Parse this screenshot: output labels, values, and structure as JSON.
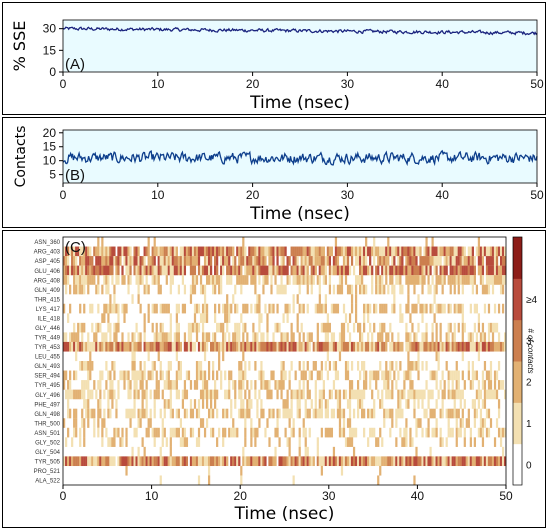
{
  "chart_data": [
    {
      "type": "line",
      "panel_label": "(A)",
      "ylabel": "% SSE",
      "xlabel": "Time (nsec)",
      "xlim": [
        0,
        50
      ],
      "ylim": [
        0,
        36
      ],
      "xticks": [
        0,
        10,
        20,
        30,
        40,
        50
      ],
      "yticks": [
        0,
        15,
        30
      ],
      "series": [
        {
          "color": "#1a237e",
          "mean": 30,
          "noise": 1.8,
          "trend_end": 27
        }
      ]
    },
    {
      "type": "line",
      "panel_label": "(B)",
      "ylabel": "Contacts",
      "xlabel": "Time (nsec)",
      "xlim": [
        0,
        50
      ],
      "ylim": [
        2,
        21
      ],
      "xticks": [
        0,
        10,
        20,
        30,
        40,
        50
      ],
      "yticks": [
        5,
        10,
        15,
        20
      ],
      "series": [
        {
          "color": "#0d3e8c",
          "mean": 11,
          "noise": 3.0
        }
      ]
    },
    {
      "type": "heatmap",
      "panel_label": "(C)",
      "xlabel": "Time (nsec)",
      "xlim": [
        0,
        50
      ],
      "xticks": [
        0,
        10,
        20,
        30,
        40,
        50
      ],
      "colorbar": {
        "label": "# of contacts",
        "ticks": [
          "0",
          "1",
          "2",
          "3",
          "≥4"
        ],
        "colors": [
          "#ffffff",
          "#f3e0b2",
          "#e2b173",
          "#cc7f4f",
          "#b84b3c",
          "#8c1d18"
        ]
      },
      "residues": [
        {
          "name": "ASN_360",
          "occupancy": 0.05
        },
        {
          "name": "ARG_403",
          "occupancy": 0.9
        },
        {
          "name": "ASP_405",
          "occupancy": 0.85
        },
        {
          "name": "GLU_406",
          "occupancy": 0.88
        },
        {
          "name": "ARG_408",
          "occupancy": 0.7
        },
        {
          "name": "GLN_409",
          "occupancy": 0.4
        },
        {
          "name": "THR_415",
          "occupancy": 0.1
        },
        {
          "name": "LYS_417",
          "occupancy": 0.55
        },
        {
          "name": "ILE_418",
          "occupancy": 0.15
        },
        {
          "name": "GLY_446",
          "occupancy": 0.35
        },
        {
          "name": "TYR_449",
          "occupancy": 0.55
        },
        {
          "name": "TYR_453",
          "occupancy": 0.97
        },
        {
          "name": "LEU_455",
          "occupancy": 0.05
        },
        {
          "name": "GLN_493",
          "occupancy": 0.3
        },
        {
          "name": "SER_494",
          "occupancy": 0.55
        },
        {
          "name": "TYR_495",
          "occupancy": 0.4
        },
        {
          "name": "GLY_496",
          "occupancy": 0.6
        },
        {
          "name": "PHE_497",
          "occupancy": 0.35
        },
        {
          "name": "GLN_498",
          "occupancy": 0.55
        },
        {
          "name": "THR_500",
          "occupancy": 0.3
        },
        {
          "name": "ASN_501",
          "occupancy": 0.5
        },
        {
          "name": "GLY_502",
          "occupancy": 0.3
        },
        {
          "name": "GLY_504",
          "occupancy": 0.05
        },
        {
          "name": "TYR_505",
          "occupancy": 0.97
        },
        {
          "name": "PRO_521",
          "occupancy": 0.02
        },
        {
          "name": "ALA_522",
          "occupancy": 0.02
        }
      ]
    }
  ]
}
